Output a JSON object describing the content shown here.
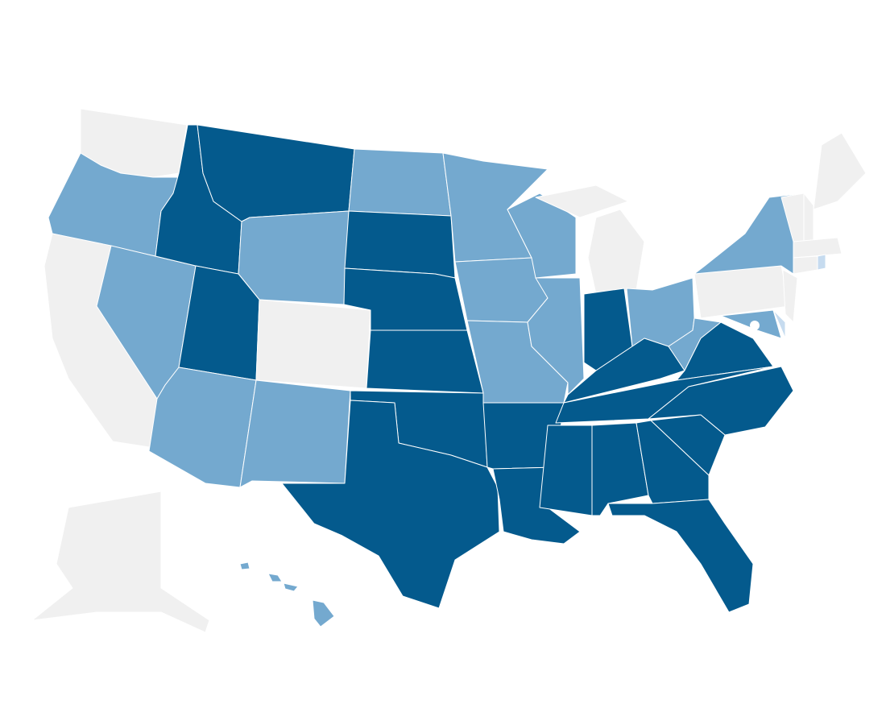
{
  "fills": [
    "#045a8d",
    "#74a9cf",
    "#c6dbef",
    "#f0f0f0"
  ],
  "border": "#ffffff"
}
